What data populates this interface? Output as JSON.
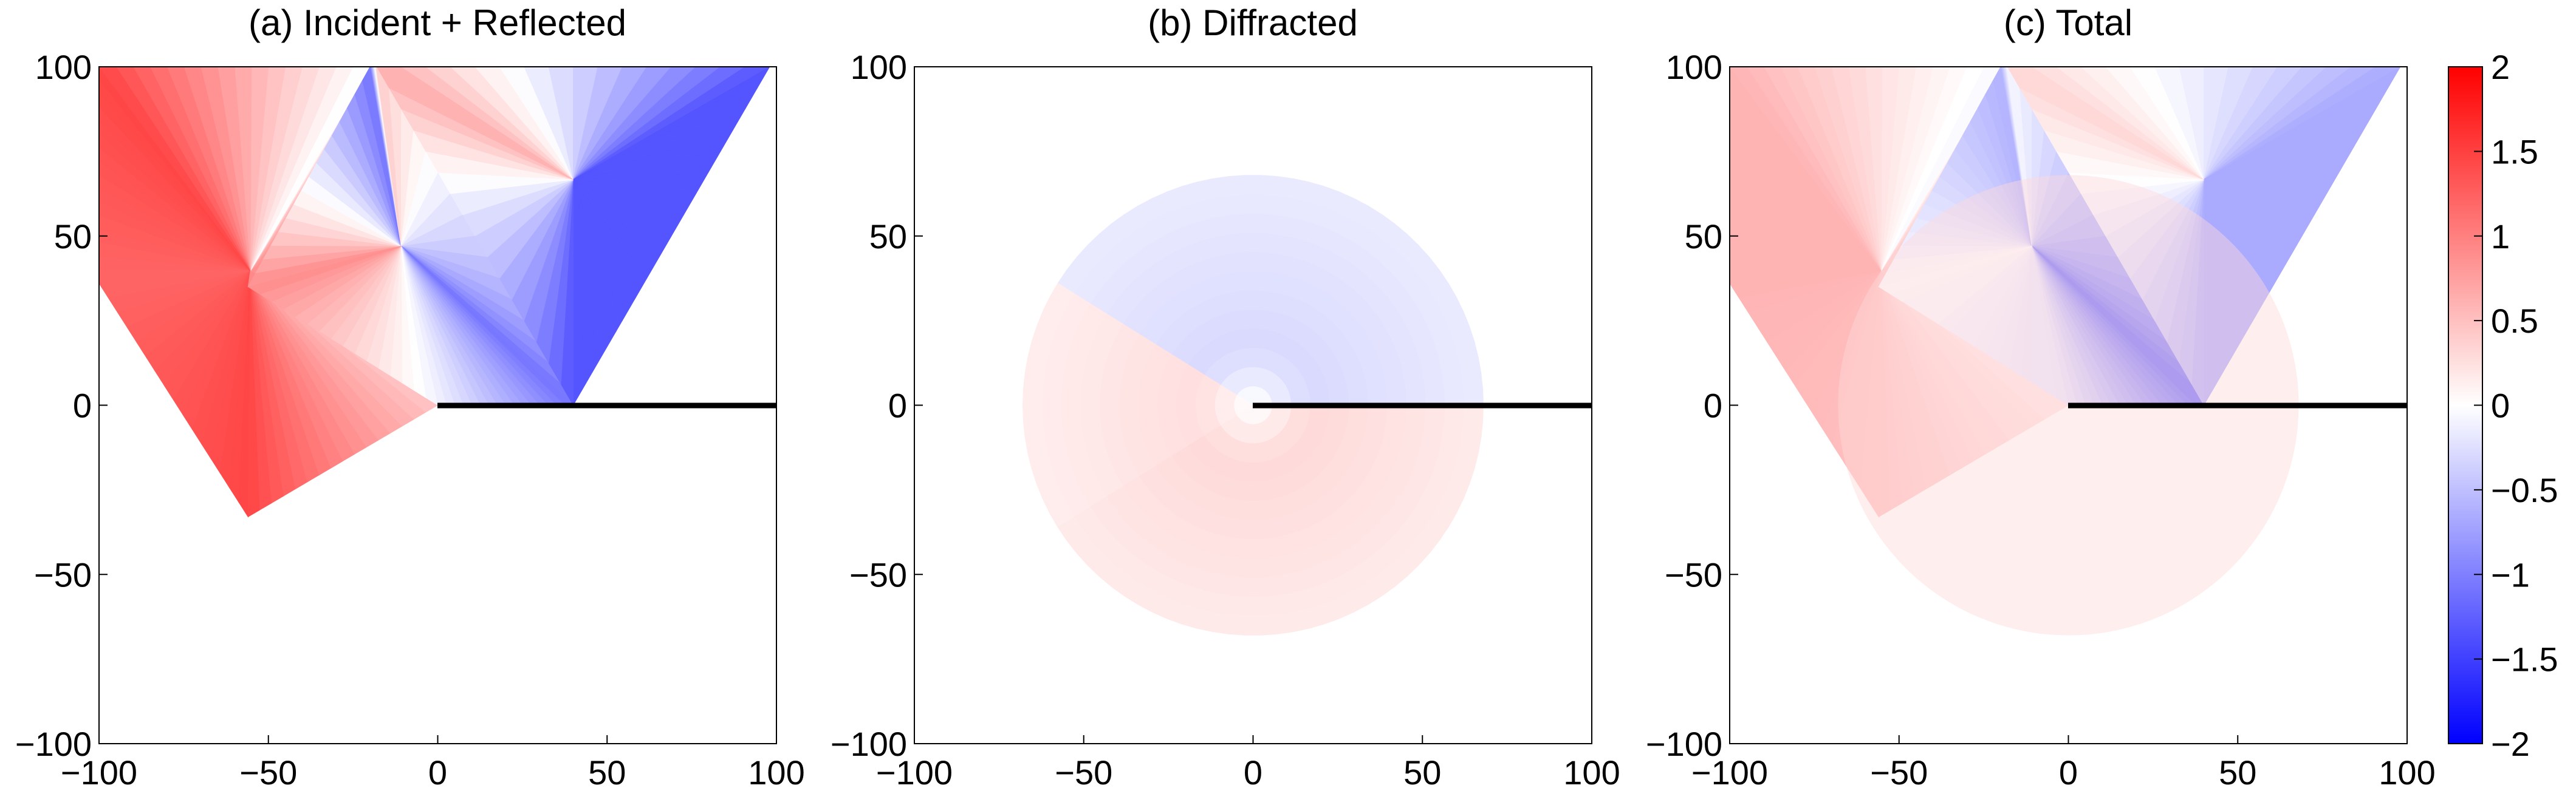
{
  "chart_data": [
    {
      "type": "heatmap",
      "title": "(a) Incident + Reflected",
      "xlabel": "",
      "ylabel": "",
      "xlim": [
        -100,
        100
      ],
      "ylim": [
        -100,
        100
      ],
      "xticks": [
        "−100",
        "−50",
        "0",
        "50",
        "100"
      ],
      "yticks": [
        "100",
        "50",
        "0",
        "−50",
        "−100"
      ],
      "screen_edge": {
        "x": [
          0,
          100
        ],
        "y": 0
      },
      "regions": [
        {
          "name": "incident-left",
          "polygon": [
            [
              -100,
              100
            ],
            [
              -100,
              36
            ],
            [
              -56,
              -33
            ],
            [
              0,
              0
            ],
            [
              -56,
              35
            ],
            [
              -20,
              100
            ]
          ],
          "values": [
            2,
            1.5,
            2,
            0,
            1,
            -1
          ]
        },
        {
          "name": "reflected-middle",
          "polygon": [
            [
              -56,
              35
            ],
            [
              -20,
              100
            ],
            [
              -18,
              100
            ],
            [
              40,
              0
            ],
            [
              0,
              0
            ]
          ],
          "values": [
            2,
            -2,
            1,
            -2,
            0
          ]
        },
        {
          "name": "reflected-right",
          "polygon": [
            [
              -18,
              100
            ],
            [
              98,
              100
            ],
            [
              40,
              0
            ]
          ],
          "values": [
            2,
            -2,
            -2
          ]
        }
      ]
    },
    {
      "type": "heatmap",
      "title": "(b) Diffracted",
      "xlabel": "",
      "ylabel": "",
      "xlim": [
        -100,
        100
      ],
      "ylim": [
        -100,
        100
      ],
      "xticks": [
        "−100",
        "−50",
        "0",
        "50",
        "100"
      ],
      "yticks": [
        "100",
        "50",
        "0",
        "−50",
        "−100"
      ],
      "screen_edge": {
        "x": [
          0,
          100
        ],
        "y": 0
      },
      "disc_radius": 68,
      "sectors": [
        {
          "name": "upper",
          "angle_range_deg": [
            0,
            148
          ],
          "value": -0.35
        },
        {
          "name": "left-wedge",
          "angle_range_deg": [
            148,
            212
          ],
          "value": 0.3
        },
        {
          "name": "lower",
          "angle_range_deg": [
            212,
            360
          ],
          "value": 0.35
        }
      ]
    },
    {
      "type": "heatmap",
      "title": "(c) Total",
      "xlabel": "",
      "ylabel": "",
      "xlim": [
        -100,
        100
      ],
      "ylim": [
        -100,
        100
      ],
      "xticks": [
        "−100",
        "−50",
        "0",
        "50",
        "100"
      ],
      "yticks": [
        "100",
        "50",
        "0",
        "−50",
        "−100"
      ],
      "screen_edge": {
        "x": [
          0,
          100
        ],
        "y": 0
      },
      "regions": [
        {
          "name": "total-left",
          "polygon": [
            [
              -100,
              100
            ],
            [
              -100,
              36
            ],
            [
              -56,
              -33
            ],
            [
              0,
              0
            ],
            [
              -56,
              35
            ],
            [
              -20,
              100
            ]
          ],
          "values": [
            0.8,
            0.8,
            0.6,
            0,
            0.6,
            -0.5
          ]
        },
        {
          "name": "total-middle",
          "polygon": [
            [
              -56,
              35
            ],
            [
              -20,
              100
            ],
            [
              -18,
              100
            ],
            [
              40,
              0
            ],
            [
              0,
              0
            ]
          ],
          "values": [
            0.4,
            -0.8,
            0.3,
            -2,
            0
          ]
        },
        {
          "name": "total-right",
          "polygon": [
            [
              -18,
              100
            ],
            [
              98,
              100
            ],
            [
              40,
              0
            ]
          ],
          "values": [
            1,
            -1,
            -1
          ]
        }
      ],
      "disc_radius": 68,
      "disc_value": 0.3
    }
  ],
  "colorbar": {
    "range": [
      -2,
      2
    ],
    "colors": {
      "low": "#0000ff",
      "mid": "#ffffff",
      "high": "#ff0000"
    },
    "ticks": [
      {
        "value": 2,
        "label": "2"
      },
      {
        "value": 1.5,
        "label": "1.5"
      },
      {
        "value": 1,
        "label": "1"
      },
      {
        "value": 0.5,
        "label": "0.5"
      },
      {
        "value": 0,
        "label": "0"
      },
      {
        "value": -0.5,
        "label": "−0.5"
      },
      {
        "value": -1,
        "label": "−1"
      },
      {
        "value": -1.5,
        "label": "−1.5"
      },
      {
        "value": -2,
        "label": "−2"
      }
    ]
  }
}
